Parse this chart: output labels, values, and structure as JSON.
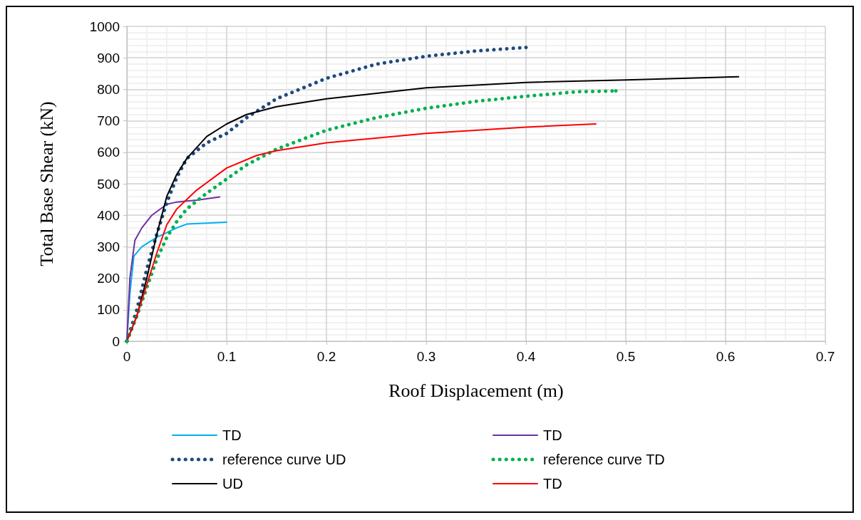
{
  "chart_data": {
    "type": "line",
    "xlabel": "Roof Displacement (m)",
    "ylabel": "Total Base Shear (kN)",
    "xlim": [
      0,
      0.7
    ],
    "xticks": [
      0,
      0.1,
      0.2,
      0.3,
      0.4,
      0.5,
      0.6,
      0.7
    ],
    "ylim": [
      0,
      1000
    ],
    "yticks": [
      0,
      100,
      200,
      300,
      400,
      500,
      600,
      700,
      800,
      900,
      1000
    ],
    "grid": true,
    "legend": "bottom",
    "marker": "none",
    "series": [
      {
        "name": "TD",
        "color": "#00b0f0",
        "line_style": "solid",
        "x": [
          0,
          0.003,
          0.007,
          0.015,
          0.03,
          0.05,
          0.06,
          0.08,
          0.1
        ],
        "values": [
          0,
          150,
          270,
          300,
          330,
          360,
          372,
          375,
          378
        ]
      },
      {
        "name": "TD",
        "color": "#7030a0",
        "line_style": "solid",
        "x": [
          0,
          0.003,
          0.008,
          0.015,
          0.025,
          0.04,
          0.05,
          0.07,
          0.093
        ],
        "values": [
          0,
          200,
          320,
          360,
          400,
          435,
          442,
          448,
          458
        ]
      },
      {
        "name": "reference curve UD",
        "color": "#1f497d",
        "line_style": "dotted",
        "x": [
          0,
          0.01,
          0.02,
          0.03,
          0.04,
          0.05,
          0.06,
          0.08,
          0.1,
          0.12,
          0.15,
          0.2,
          0.25,
          0.3,
          0.35,
          0.4
        ],
        "values": [
          0,
          100,
          230,
          340,
          440,
          520,
          580,
          630,
          660,
          710,
          770,
          835,
          880,
          905,
          922,
          933
        ]
      },
      {
        "name": "reference curve TD",
        "color": "#00b050",
        "line_style": "dotted",
        "x": [
          0,
          0.01,
          0.02,
          0.03,
          0.04,
          0.05,
          0.06,
          0.08,
          0.1,
          0.12,
          0.15,
          0.2,
          0.25,
          0.3,
          0.35,
          0.4,
          0.45,
          0.49
        ],
        "values": [
          0,
          80,
          170,
          260,
          330,
          380,
          420,
          470,
          515,
          560,
          610,
          670,
          710,
          740,
          762,
          778,
          792,
          795
        ]
      },
      {
        "name": "UD",
        "color": "#000000",
        "line_style": "solid",
        "x": [
          0,
          0.01,
          0.02,
          0.03,
          0.04,
          0.05,
          0.06,
          0.08,
          0.1,
          0.12,
          0.15,
          0.2,
          0.3,
          0.4,
          0.5,
          0.613
        ],
        "values": [
          0,
          80,
          200,
          340,
          460,
          530,
          580,
          650,
          690,
          720,
          745,
          770,
          805,
          822,
          830,
          840
        ]
      },
      {
        "name": "TD",
        "color": "#ff0000",
        "line_style": "solid",
        "x": [
          0,
          0.01,
          0.02,
          0.03,
          0.04,
          0.05,
          0.07,
          0.1,
          0.13,
          0.15,
          0.2,
          0.3,
          0.4,
          0.47
        ],
        "values": [
          0,
          80,
          180,
          280,
          370,
          420,
          480,
          550,
          590,
          605,
          630,
          660,
          680,
          690
        ]
      }
    ]
  }
}
